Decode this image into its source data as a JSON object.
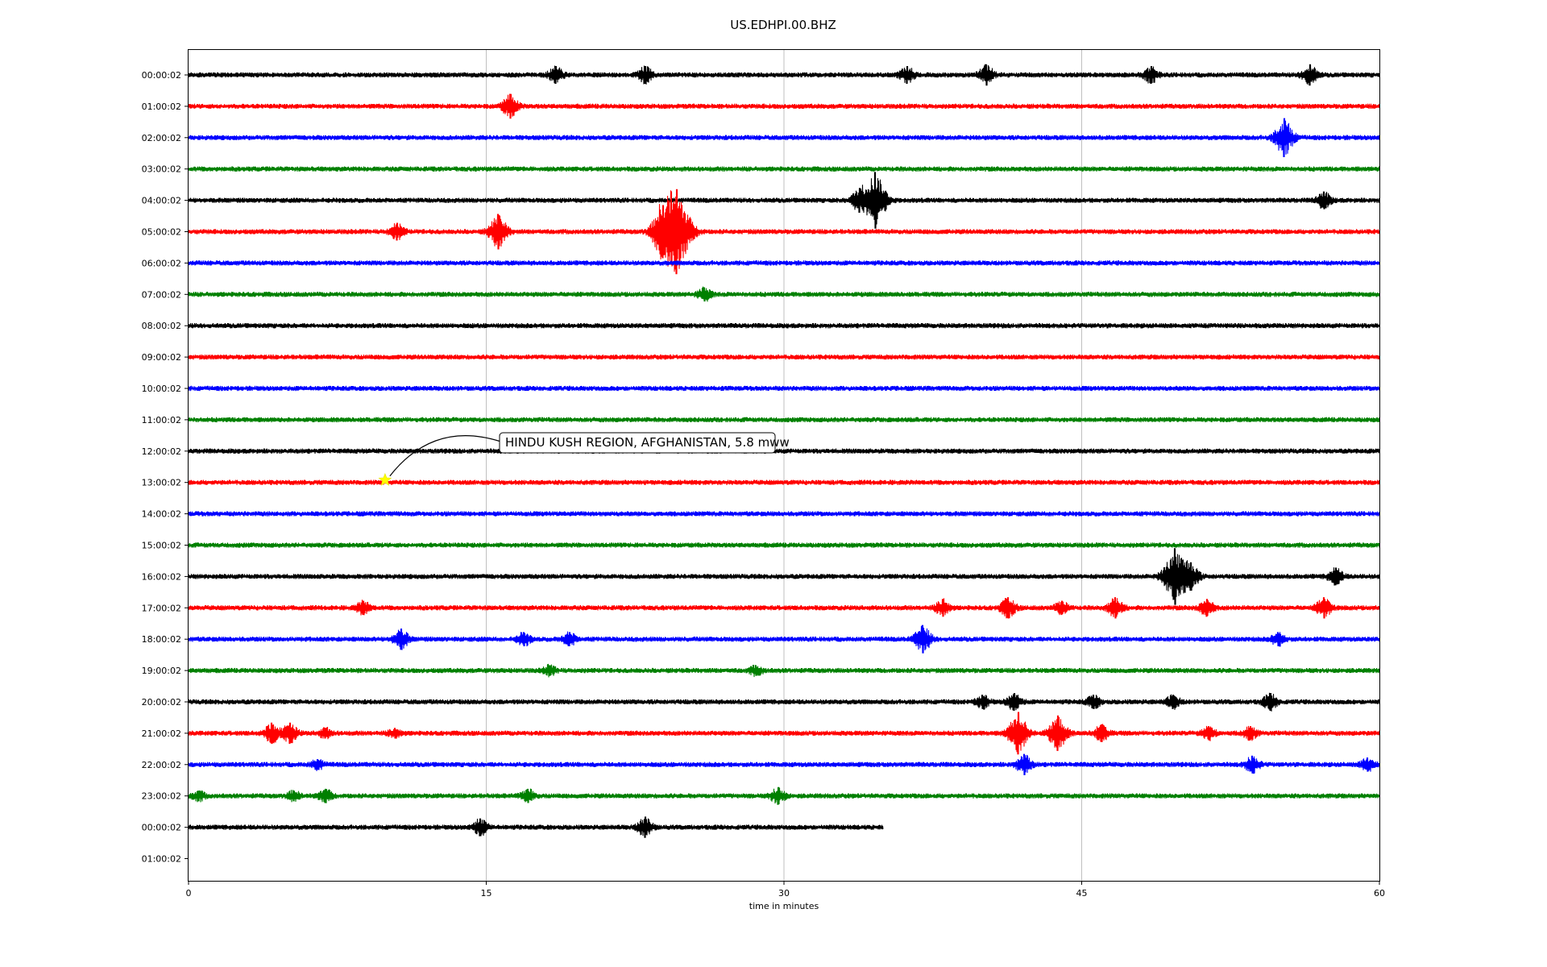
{
  "chart_data": {
    "type": "line",
    "title": "US.EDHPI.00.BHZ",
    "xlabel": "time in minutes",
    "ylabel": "",
    "xlim": [
      0,
      60
    ],
    "xticks": [
      "0",
      "15",
      "30",
      "45",
      "60"
    ],
    "grid": "vertical",
    "trace_colors": [
      "#000000",
      "#ff0000",
      "#0000ff",
      "#008000"
    ],
    "row_labels": [
      "00:00:02",
      "01:00:02",
      "02:00:02",
      "03:00:02",
      "04:00:02",
      "05:00:02",
      "06:00:02",
      "07:00:02",
      "08:00:02",
      "09:00:02",
      "10:00:02",
      "11:00:02",
      "12:00:02",
      "13:00:02",
      "14:00:02",
      "15:00:02",
      "16:00:02",
      "17:00:02",
      "18:00:02",
      "19:00:02",
      "20:00:02",
      "21:00:02",
      "22:00:02",
      "23:00:02",
      "00:00:02",
      "01:00:02"
    ],
    "traces": [
      {
        "row": 0,
        "end_min": 60,
        "events": [
          [
            18.5,
            0.5
          ],
          [
            23,
            0.5
          ],
          [
            36.2,
            0.5
          ],
          [
            40.2,
            0.6
          ],
          [
            48.5,
            0.5
          ],
          [
            56.5,
            0.6
          ]
        ]
      },
      {
        "row": 1,
        "end_min": 60,
        "events": [
          [
            16.2,
            0.7
          ]
        ]
      },
      {
        "row": 2,
        "end_min": 60,
        "events": [
          [
            55.2,
            1.1
          ]
        ]
      },
      {
        "row": 3,
        "end_min": 60,
        "events": []
      },
      {
        "row": 4,
        "end_min": 60,
        "events": [
          [
            33.8,
            0.7
          ],
          [
            34.6,
            1.6
          ],
          [
            57.2,
            0.5
          ]
        ]
      },
      {
        "row": 5,
        "end_min": 60,
        "events": [
          [
            10.5,
            0.5
          ],
          [
            15.6,
            1.0
          ],
          [
            23.9,
            1.5
          ],
          [
            24.6,
            2.4
          ]
        ]
      },
      {
        "row": 6,
        "end_min": 60,
        "events": []
      },
      {
        "row": 7,
        "end_min": 60,
        "events": [
          [
            26,
            0.4
          ]
        ]
      },
      {
        "row": 8,
        "end_min": 60,
        "events": []
      },
      {
        "row": 9,
        "end_min": 60,
        "events": []
      },
      {
        "row": 10,
        "end_min": 60,
        "events": []
      },
      {
        "row": 11,
        "end_min": 60,
        "events": []
      },
      {
        "row": 12,
        "end_min": 60,
        "events": []
      },
      {
        "row": 13,
        "end_min": 60,
        "events": []
      },
      {
        "row": 14,
        "end_min": 60,
        "events": []
      },
      {
        "row": 15,
        "end_min": 60,
        "events": []
      },
      {
        "row": 16,
        "end_min": 60,
        "events": [
          [
            49.7,
            1.6
          ],
          [
            50.5,
            0.8
          ],
          [
            57.8,
            0.5
          ]
        ]
      },
      {
        "row": 17,
        "end_min": 60,
        "events": [
          [
            8.8,
            0.4
          ],
          [
            38,
            0.5
          ],
          [
            41.3,
            0.6
          ],
          [
            44,
            0.4
          ],
          [
            46.7,
            0.6
          ],
          [
            51.3,
            0.5
          ],
          [
            57.2,
            0.6
          ]
        ]
      },
      {
        "row": 18,
        "end_min": 60,
        "events": [
          [
            10.7,
            0.6
          ],
          [
            16.9,
            0.4
          ],
          [
            19.2,
            0.4
          ],
          [
            37,
            0.8
          ],
          [
            54.9,
            0.4
          ]
        ]
      },
      {
        "row": 19,
        "end_min": 60,
        "events": [
          [
            18.2,
            0.3
          ],
          [
            28.6,
            0.3
          ]
        ]
      },
      {
        "row": 20,
        "end_min": 60,
        "events": [
          [
            40,
            0.4
          ],
          [
            41.6,
            0.5
          ],
          [
            45.6,
            0.4
          ],
          [
            49.6,
            0.4
          ],
          [
            54.5,
            0.5
          ]
        ]
      },
      {
        "row": 21,
        "end_min": 60,
        "events": [
          [
            4.2,
            0.6
          ],
          [
            5.1,
            0.6
          ],
          [
            6.9,
            0.3
          ],
          [
            10.4,
            0.3
          ],
          [
            41.8,
            1.2
          ],
          [
            43.8,
            1.0
          ],
          [
            46,
            0.5
          ],
          [
            51.4,
            0.4
          ],
          [
            53.5,
            0.4
          ]
        ]
      },
      {
        "row": 22,
        "end_min": 60,
        "events": [
          [
            6.5,
            0.3
          ],
          [
            42.1,
            0.6
          ],
          [
            53.6,
            0.5
          ],
          [
            59.4,
            0.4
          ]
        ]
      },
      {
        "row": 23,
        "end_min": 60,
        "events": [
          [
            0.5,
            0.3
          ],
          [
            5.3,
            0.3
          ],
          [
            6.9,
            0.4
          ],
          [
            17.1,
            0.4
          ],
          [
            29.7,
            0.5
          ]
        ]
      },
      {
        "row": 24,
        "end_min": 35,
        "events": [
          [
            14.7,
            0.5
          ],
          [
            23,
            0.6
          ]
        ]
      }
    ],
    "annotation": {
      "text": "HINDU KUSH REGION, AFGHANISTAN, 5.8 mww",
      "row": 13,
      "minute": 9.9,
      "marker": "star",
      "marker_color": "#ffff00"
    }
  }
}
